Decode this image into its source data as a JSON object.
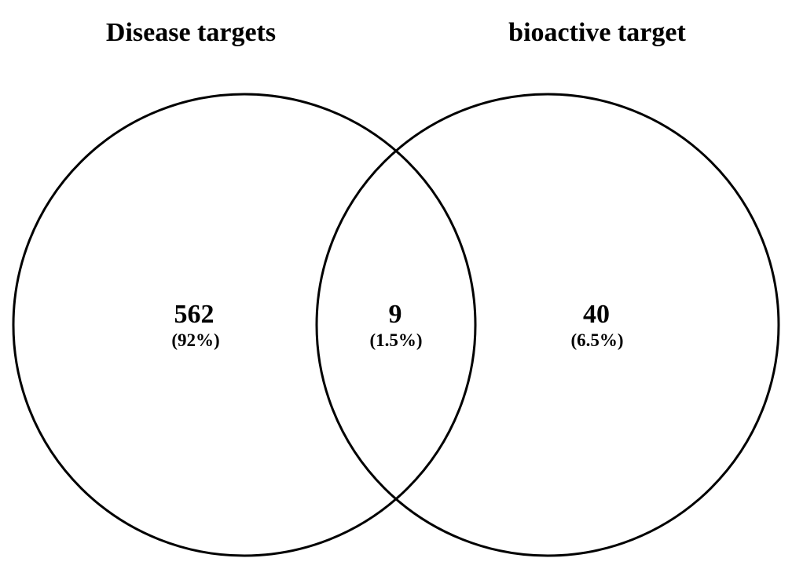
{
  "sets": {
    "left": {
      "title": "Disease targets"
    },
    "right": {
      "title": "bioactive target"
    }
  },
  "regions": {
    "left_only": {
      "count": "562",
      "percent": "(92%)"
    },
    "intersection": {
      "count": "9",
      "percent": "(1.5%)"
    },
    "right_only": {
      "count": "40",
      "percent": "(6.5%)"
    }
  },
  "colors": {
    "stroke": "#000000",
    "background": "#ffffff",
    "text": "#000000"
  }
}
